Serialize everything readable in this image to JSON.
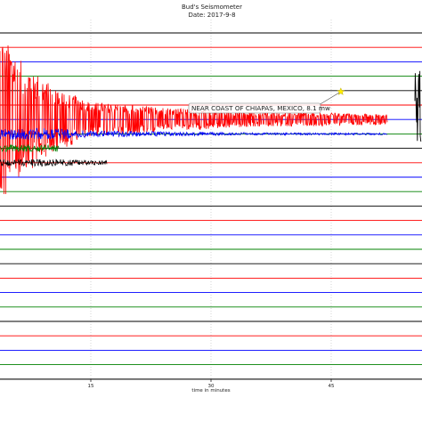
{
  "chart_data": {
    "type": "line",
    "title": "Bud's Seismometer",
    "subtitle": "Date: 2017-9-8",
    "xlabel": "time in minutes",
    "ylabel": "",
    "x_ticks": [
      15,
      30,
      45
    ],
    "xlim": [
      0,
      52
    ],
    "grid": "vertical dotted at minute ticks",
    "legend": "none",
    "rows": 25,
    "row_colors": [
      "#000000",
      "#ff0000",
      "#0000ff",
      "#008000"
    ],
    "annotation": {
      "label": "NEAR COAST OF CHIAPAS, MEXICO, 8.1 mw",
      "marker": "star",
      "marker_color": "#ffee00",
      "marker_minute": 46.2
    },
    "series": [
      {
        "row": 6,
        "color": "#ff0000",
        "description": "main quake trace",
        "active_minutes": [
          0,
          52
        ]
      },
      {
        "row": 7,
        "color": "#0000ff",
        "active_minutes": [
          0,
          52
        ]
      },
      {
        "row": 8,
        "color": "#008000",
        "active_minutes": [
          0,
          11
        ]
      },
      {
        "row": 9,
        "color": "#000000",
        "active_minutes": [
          0,
          17
        ]
      }
    ],
    "amplitude_envelope": [
      {
        "minute": 0,
        "amp": 0.3
      },
      {
        "minute": 1.5,
        "amp": 7.5
      },
      {
        "minute": 3,
        "amp": 6.5
      },
      {
        "minute": 6,
        "amp": 4.2
      },
      {
        "minute": 10,
        "amp": 2.4
      },
      {
        "minute": 15,
        "amp": 1.2
      },
      {
        "minute": 25,
        "amp": 0.8
      },
      {
        "minute": 35,
        "amp": 0.5
      },
      {
        "minute": 45,
        "amp": 0.45
      },
      {
        "minute": 52,
        "amp": 0.35
      }
    ]
  }
}
